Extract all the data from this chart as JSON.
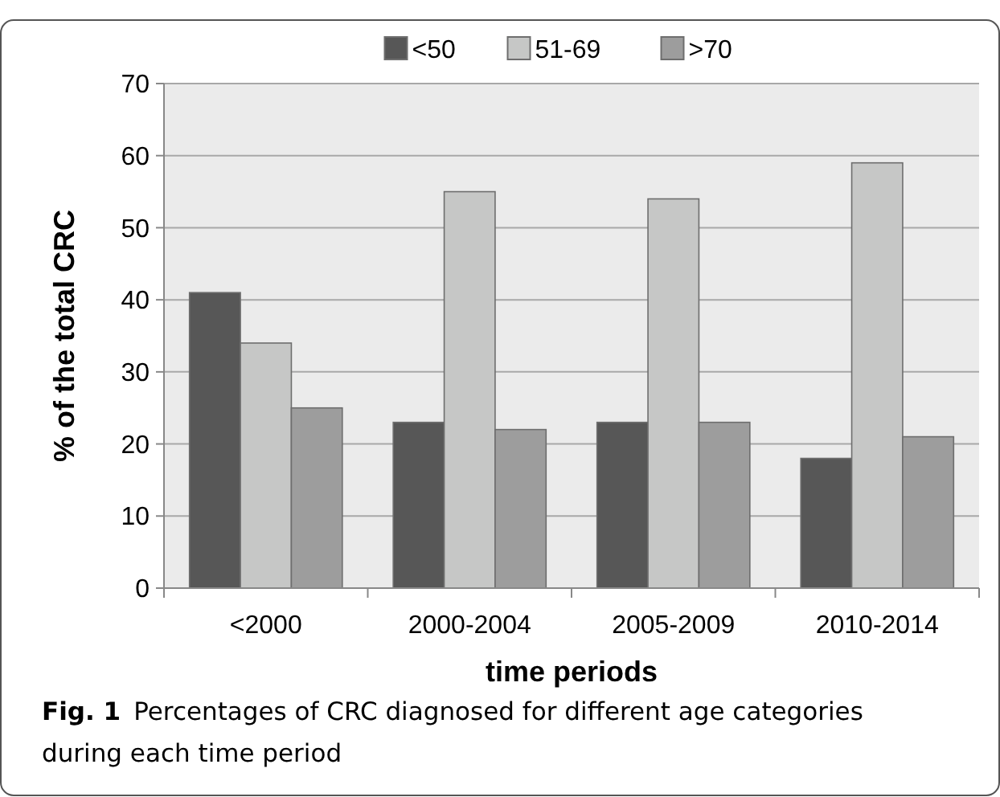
{
  "chart_data": {
    "type": "bar",
    "categories": [
      "<2000",
      "2000-2004",
      "2005-2009",
      "2010-2014"
    ],
    "series": [
      {
        "name": "<50",
        "color": "#575757",
        "values": [
          41,
          23,
          23,
          18
        ]
      },
      {
        "name": "51-69",
        "color": "#c6c7c6",
        "values": [
          34,
          55,
          54,
          59
        ]
      },
      {
        "name": ">70",
        "color": "#9d9d9d",
        "values": [
          25,
          22,
          23,
          21
        ]
      }
    ],
    "xlabel": "time periods",
    "ylabel": "% of the total CRC",
    "ylim": [
      0,
      70
    ],
    "yticks": [
      0,
      10,
      20,
      30,
      40,
      50,
      60,
      70
    ],
    "grid": "y",
    "legend": "top",
    "annotations": [
      "Fig. 1",
      "Percentages of CRC diagnosed for different age categories during each time period"
    ]
  }
}
